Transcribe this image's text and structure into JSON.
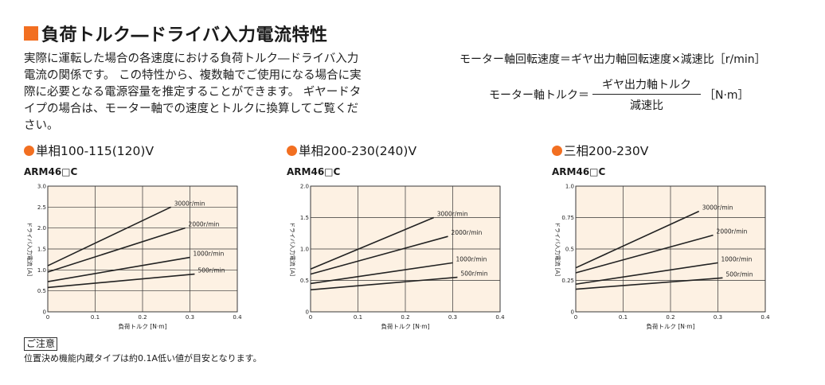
{
  "title": "負荷トルク―ドライバ入力電流特性",
  "description": [
    "実際に運転した場合の各速度における負荷トルク―ドライバ入力",
    "電流の関係です。 この特性から、複数軸でご使用になる場合に実",
    "際に必要となる電源容量を推定することができます。 ギヤードタ",
    "イプの場合は、モーター軸での速度とトルクに換算してご覧くだ",
    "さい。"
  ],
  "formula": {
    "line1": "モーター軸回転速度＝ギヤ出力軸回転速度×減速比［r/min］",
    "lhs": "モーター軸トルク＝",
    "numerator": "ギヤ出力軸トルク",
    "denominator": "減速比",
    "unit": "［N·m］"
  },
  "note": {
    "label": "ご注意",
    "text": "位置決め機能内蔵タイプは約0.1A低い値が目安となります。"
  },
  "colors": {
    "accent": "#f26f21",
    "plot_bg": "#fdf1e3",
    "grid": "#333333",
    "line": "#222222"
  },
  "chart_data": [
    {
      "type": "line",
      "heading": "単相100-115(120)V",
      "model": "ARM46□C",
      "xlabel": "負荷トルク [N·m]",
      "ylabel": "ドライバ入力電流 [A]",
      "xlim": [
        0,
        0.4
      ],
      "ylim": [
        0,
        3.0
      ],
      "xticks": [
        "0",
        "0.1",
        "0.2",
        "0.3",
        "0.4"
      ],
      "yticks": [
        "0",
        "0.5",
        "1.0",
        "1.5",
        "2.0",
        "2.5",
        "3.0"
      ],
      "grid": true,
      "series": [
        {
          "name": "3000r/min",
          "x": [
            0,
            0.26
          ],
          "y": [
            1.1,
            2.5
          ]
        },
        {
          "name": "2000r/min",
          "x": [
            0,
            0.29
          ],
          "y": [
            0.95,
            2.0
          ]
        },
        {
          "name": "1000r/min",
          "x": [
            0,
            0.3
          ],
          "y": [
            0.72,
            1.3
          ]
        },
        {
          "name": "500r/min",
          "x": [
            0,
            0.31
          ],
          "y": [
            0.58,
            0.9
          ]
        }
      ]
    },
    {
      "type": "line",
      "heading": "単相200-230(240)V",
      "model": "ARM46□C",
      "xlabel": "負荷トルク [N·m]",
      "ylabel": "ドライバ入力電流 [A]",
      "xlim": [
        0,
        0.4
      ],
      "ylim": [
        0,
        2.0
      ],
      "xticks": [
        "0",
        "0.1",
        "0.2",
        "0.3",
        "0.4"
      ],
      "yticks": [
        "0",
        "0.5",
        "1.0",
        "1.5",
        "2.0"
      ],
      "grid": true,
      "series": [
        {
          "name": "3000r/min",
          "x": [
            0,
            0.26
          ],
          "y": [
            0.68,
            1.5
          ]
        },
        {
          "name": "2000r/min",
          "x": [
            0,
            0.29
          ],
          "y": [
            0.6,
            1.2
          ]
        },
        {
          "name": "1000r/min",
          "x": [
            0,
            0.3
          ],
          "y": [
            0.45,
            0.78
          ]
        },
        {
          "name": "500r/min",
          "x": [
            0,
            0.31
          ],
          "y": [
            0.35,
            0.55
          ]
        }
      ]
    },
    {
      "type": "line",
      "heading": "三相200-230V",
      "model": "ARM46□C",
      "xlabel": "負荷トルク [N·m]",
      "ylabel": "ドライバ入力電流 [A]",
      "xlim": [
        0,
        0.4
      ],
      "ylim": [
        0,
        1.0
      ],
      "xticks": [
        "0",
        "0.1",
        "0.2",
        "0.3",
        "0.4"
      ],
      "yticks": [
        "0",
        "0.25",
        "0.5",
        "0.75",
        "1.0"
      ],
      "grid": true,
      "series": [
        {
          "name": "3000r/min",
          "x": [
            0,
            0.26
          ],
          "y": [
            0.35,
            0.8
          ]
        },
        {
          "name": "2000r/min",
          "x": [
            0,
            0.29
          ],
          "y": [
            0.31,
            0.61
          ]
        },
        {
          "name": "1000r/min",
          "x": [
            0,
            0.3
          ],
          "y": [
            0.22,
            0.39
          ]
        },
        {
          "name": "500r/min",
          "x": [
            0,
            0.31
          ],
          "y": [
            0.18,
            0.27
          ]
        }
      ]
    }
  ]
}
